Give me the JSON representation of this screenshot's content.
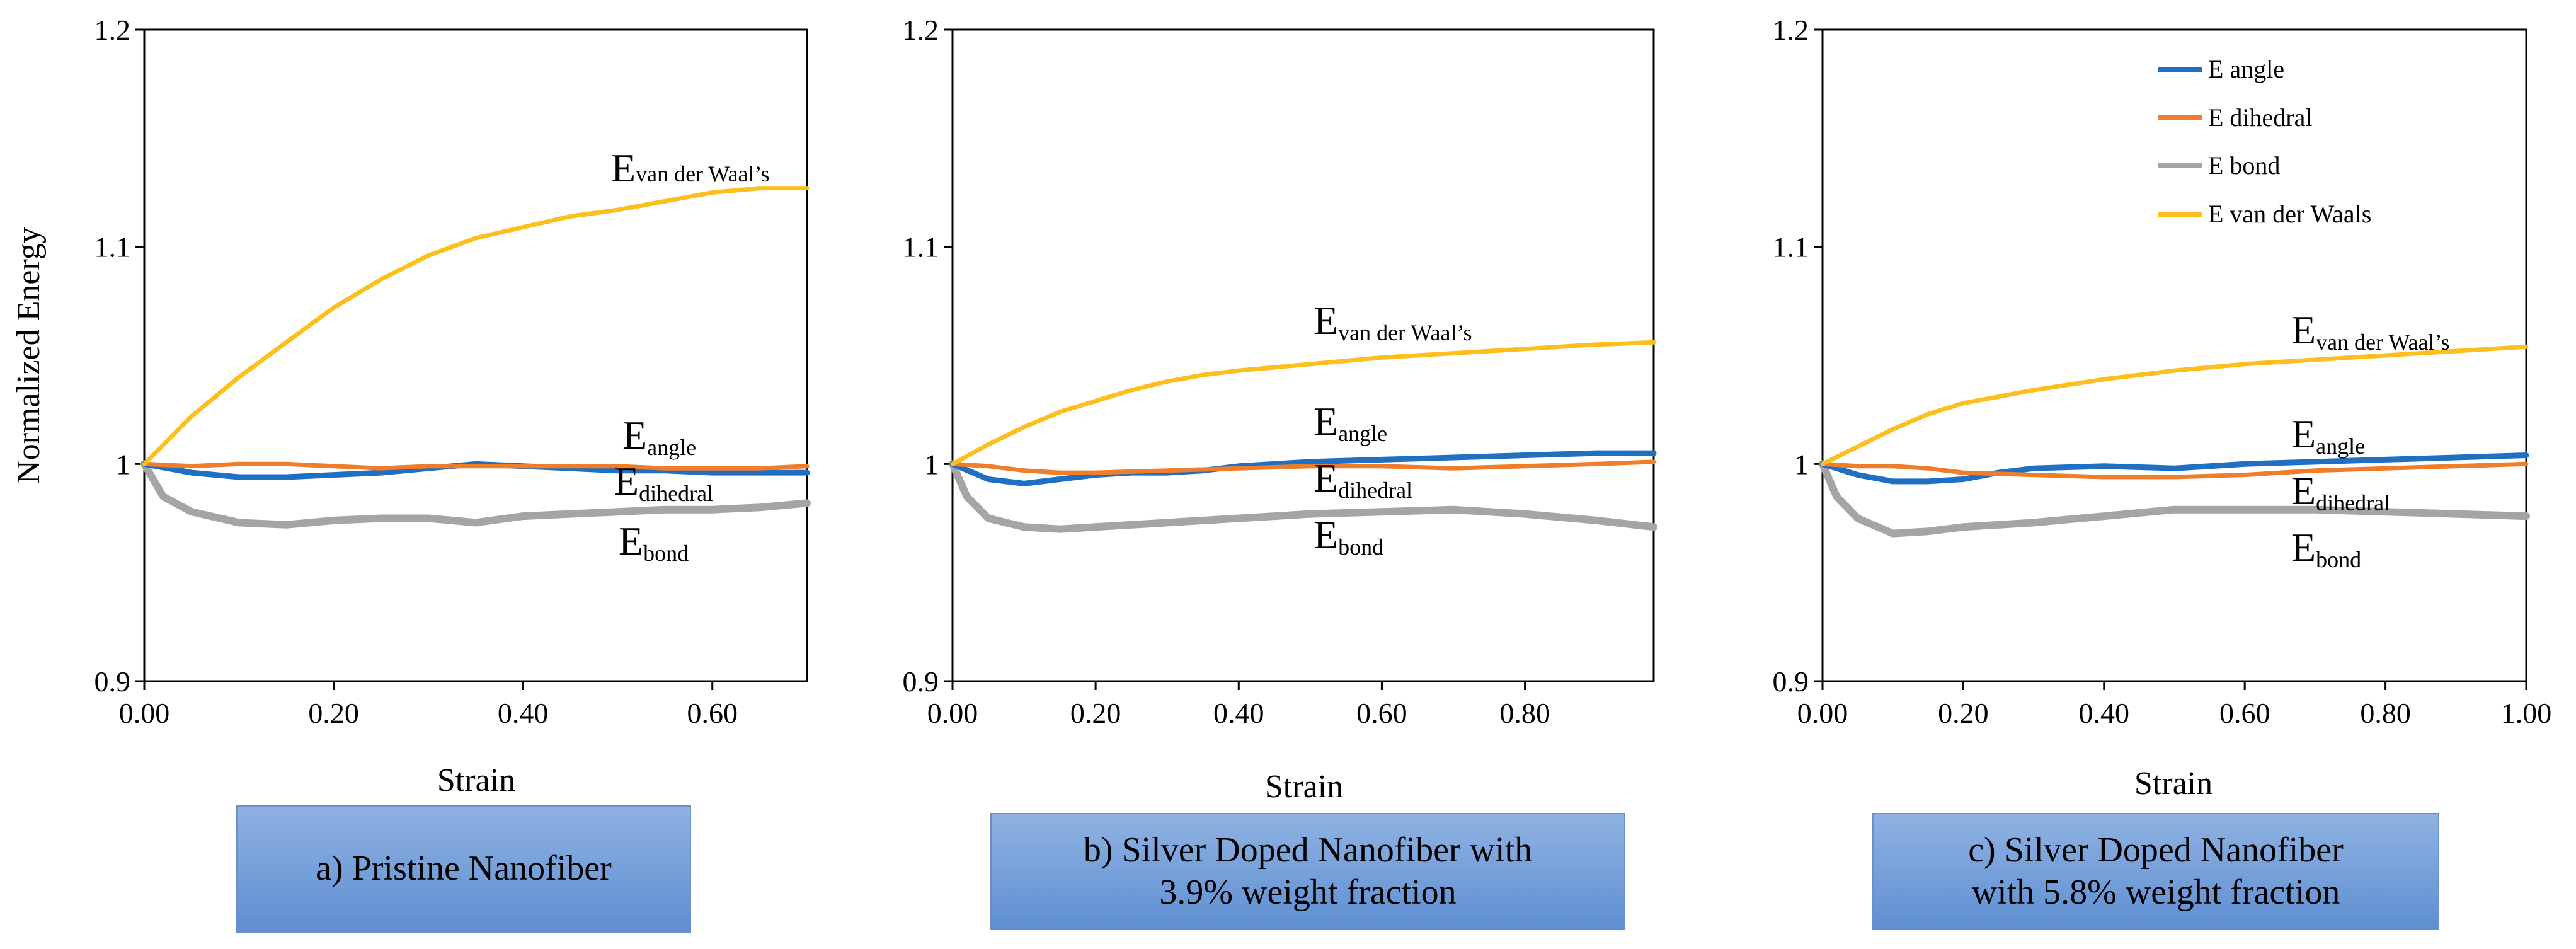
{
  "chart_data": [
    {
      "type": "line",
      "panel": "a",
      "ylabel": "Normalized Energy",
      "xlabel": "Strain",
      "xlim": [
        0,
        0.7
      ],
      "ylim": [
        0.9,
        1.2
      ],
      "xticks": [
        "0.00",
        "0.20",
        "0.40",
        "0.60"
      ],
      "xtick_values": [
        0,
        0.2,
        0.4,
        0.6
      ],
      "yticks": [
        "0.9",
        "1",
        "1.1",
        "1.2"
      ],
      "ytick_values": [
        0.9,
        1.0,
        1.1,
        1.2
      ],
      "series": [
        {
          "name": "E angle",
          "color": "#1f6fc5",
          "x": [
            0,
            0.05,
            0.1,
            0.15,
            0.2,
            0.25,
            0.3,
            0.35,
            0.4,
            0.45,
            0.5,
            0.55,
            0.6,
            0.65,
            0.7
          ],
          "y": [
            1.0,
            0.996,
            0.994,
            0.994,
            0.995,
            0.996,
            0.998,
            1.0,
            0.999,
            0.998,
            0.997,
            0.997,
            0.996,
            0.996,
            0.996
          ]
        },
        {
          "name": "E dihedral",
          "color": "#f07d2c",
          "x": [
            0,
            0.05,
            0.1,
            0.15,
            0.2,
            0.25,
            0.3,
            0.35,
            0.4,
            0.45,
            0.5,
            0.55,
            0.6,
            0.65,
            0.7
          ],
          "y": [
            1.0,
            0.999,
            1.0,
            1.0,
            0.999,
            0.998,
            0.999,
            0.999,
            0.999,
            0.999,
            0.999,
            0.998,
            0.998,
            0.998,
            0.999
          ]
        },
        {
          "name": "E bond",
          "color": "#a5a5a5",
          "x": [
            0,
            0.02,
            0.05,
            0.1,
            0.15,
            0.2,
            0.25,
            0.3,
            0.35,
            0.4,
            0.45,
            0.5,
            0.55,
            0.6,
            0.65,
            0.7
          ],
          "y": [
            1.0,
            0.985,
            0.978,
            0.973,
            0.972,
            0.974,
            0.975,
            0.975,
            0.973,
            0.976,
            0.977,
            0.978,
            0.979,
            0.979,
            0.98,
            0.982
          ]
        },
        {
          "name": "E van der Waals",
          "color": "#fcbf1e",
          "x": [
            0,
            0.05,
            0.1,
            0.15,
            0.2,
            0.25,
            0.3,
            0.35,
            0.4,
            0.45,
            0.5,
            0.55,
            0.6,
            0.65,
            0.7
          ],
          "y": [
            1.0,
            1.022,
            1.04,
            1.056,
            1.072,
            1.085,
            1.096,
            1.104,
            1.109,
            1.114,
            1.117,
            1.121,
            1.125,
            1.127,
            1.127
          ]
        }
      ],
      "annotations": [
        {
          "main": "E",
          "sub": "van der Waal’s"
        },
        {
          "main": "E",
          "sub": "angle"
        },
        {
          "main": "E",
          "sub": "dihedral"
        },
        {
          "main": "E",
          "sub": "bond"
        }
      ],
      "caption": "a) Pristine Nanofiber"
    },
    {
      "type": "line",
      "panel": "b",
      "xlabel": "Strain",
      "xlim": [
        0,
        0.98
      ],
      "ylim": [
        0.9,
        1.2
      ],
      "xticks": [
        "0.00",
        "0.20",
        "0.40",
        "0.60",
        "0.80"
      ],
      "xtick_values": [
        0,
        0.2,
        0.4,
        0.6,
        0.8
      ],
      "yticks": [
        "0.9",
        "1",
        "1.1",
        "1.2"
      ],
      "ytick_values": [
        0.9,
        1.0,
        1.1,
        1.2
      ],
      "series": [
        {
          "name": "E angle",
          "color": "#1f6fc5",
          "x": [
            0,
            0.05,
            0.1,
            0.15,
            0.2,
            0.25,
            0.3,
            0.35,
            0.4,
            0.5,
            0.6,
            0.7,
            0.8,
            0.9,
            0.98
          ],
          "y": [
            1.0,
            0.993,
            0.991,
            0.993,
            0.995,
            0.996,
            0.996,
            0.997,
            0.999,
            1.001,
            1.002,
            1.003,
            1.004,
            1.005,
            1.005
          ]
        },
        {
          "name": "E dihedral",
          "color": "#f07d2c",
          "x": [
            0,
            0.05,
            0.1,
            0.15,
            0.2,
            0.3,
            0.4,
            0.5,
            0.6,
            0.7,
            0.8,
            0.9,
            0.98
          ],
          "y": [
            1.0,
            0.999,
            0.997,
            0.996,
            0.996,
            0.997,
            0.998,
            0.999,
            0.999,
            0.998,
            0.999,
            1.0,
            1.001
          ]
        },
        {
          "name": "E bond",
          "color": "#a5a5a5",
          "x": [
            0,
            0.02,
            0.05,
            0.1,
            0.15,
            0.2,
            0.3,
            0.4,
            0.5,
            0.6,
            0.7,
            0.8,
            0.9,
            0.98
          ],
          "y": [
            1.0,
            0.985,
            0.975,
            0.971,
            0.97,
            0.971,
            0.973,
            0.975,
            0.977,
            0.978,
            0.979,
            0.977,
            0.974,
            0.971
          ]
        },
        {
          "name": "E van der Waals",
          "color": "#fcbf1e",
          "x": [
            0,
            0.05,
            0.1,
            0.15,
            0.2,
            0.25,
            0.3,
            0.35,
            0.4,
            0.5,
            0.6,
            0.7,
            0.8,
            0.9,
            0.98
          ],
          "y": [
            1.0,
            1.009,
            1.017,
            1.024,
            1.029,
            1.034,
            1.038,
            1.041,
            1.043,
            1.046,
            1.049,
            1.051,
            1.053,
            1.055,
            1.056
          ]
        }
      ],
      "annotations": [
        {
          "main": "E",
          "sub": "van der Waal’s"
        },
        {
          "main": "E",
          "sub": "angle"
        },
        {
          "main": "E",
          "sub": "dihedral"
        },
        {
          "main": "E",
          "sub": "bond"
        }
      ],
      "caption_lines": [
        "b) Silver Doped Nanofiber with",
        "3.9% weight fraction"
      ]
    },
    {
      "type": "line",
      "panel": "c",
      "xlabel": "Strain",
      "xlim": [
        0,
        1.0
      ],
      "ylim": [
        0.9,
        1.2
      ],
      "xticks": [
        "0.00",
        "0.20",
        "0.40",
        "0.60",
        "0.80",
        "1.00"
      ],
      "xtick_values": [
        0,
        0.2,
        0.4,
        0.6,
        0.8,
        1.0
      ],
      "yticks": [
        "0.9",
        "1",
        "1.1",
        "1.2"
      ],
      "ytick_values": [
        0.9,
        1.0,
        1.1,
        1.2
      ],
      "series": [
        {
          "name": "E angle",
          "color": "#1f6fc5",
          "x": [
            0,
            0.05,
            0.1,
            0.15,
            0.2,
            0.25,
            0.3,
            0.4,
            0.5,
            0.6,
            0.7,
            0.8,
            0.9,
            1.0
          ],
          "y": [
            1.0,
            0.995,
            0.992,
            0.992,
            0.993,
            0.996,
            0.998,
            0.999,
            0.998,
            1.0,
            1.001,
            1.002,
            1.003,
            1.004
          ]
        },
        {
          "name": "E dihedral",
          "color": "#f07d2c",
          "x": [
            0,
            0.05,
            0.1,
            0.15,
            0.2,
            0.3,
            0.4,
            0.5,
            0.6,
            0.7,
            0.8,
            0.9,
            1.0
          ],
          "y": [
            1.0,
            0.999,
            0.999,
            0.998,
            0.996,
            0.995,
            0.994,
            0.994,
            0.995,
            0.997,
            0.998,
            0.999,
            1.0
          ]
        },
        {
          "name": "E bond",
          "color": "#a5a5a5",
          "x": [
            0,
            0.02,
            0.05,
            0.1,
            0.15,
            0.2,
            0.3,
            0.4,
            0.5,
            0.6,
            0.7,
            0.8,
            0.9,
            1.0
          ],
          "y": [
            1.0,
            0.985,
            0.975,
            0.968,
            0.969,
            0.971,
            0.973,
            0.976,
            0.979,
            0.979,
            0.979,
            0.978,
            0.977,
            0.976
          ]
        },
        {
          "name": "E van der Waals",
          "color": "#fcbf1e",
          "x": [
            0,
            0.05,
            0.1,
            0.15,
            0.2,
            0.3,
            0.4,
            0.5,
            0.6,
            0.7,
            0.8,
            0.9,
            1.0
          ],
          "y": [
            1.0,
            1.008,
            1.016,
            1.023,
            1.028,
            1.034,
            1.039,
            1.043,
            1.046,
            1.048,
            1.05,
            1.052,
            1.054
          ]
        }
      ],
      "annotations": [
        {
          "main": "E",
          "sub": "van der Waal’s"
        },
        {
          "main": "E",
          "sub": "angle"
        },
        {
          "main": "E",
          "sub": "dihedral"
        },
        {
          "main": "E",
          "sub": "bond"
        }
      ],
      "legend": [
        "E angle",
        "E dihedral",
        "E bond",
        "E van der Waals"
      ],
      "legend_position": "top-right",
      "caption_lines": [
        "c) Silver Doped Nanofiber",
        "with 5.8% weight fraction"
      ]
    }
  ]
}
